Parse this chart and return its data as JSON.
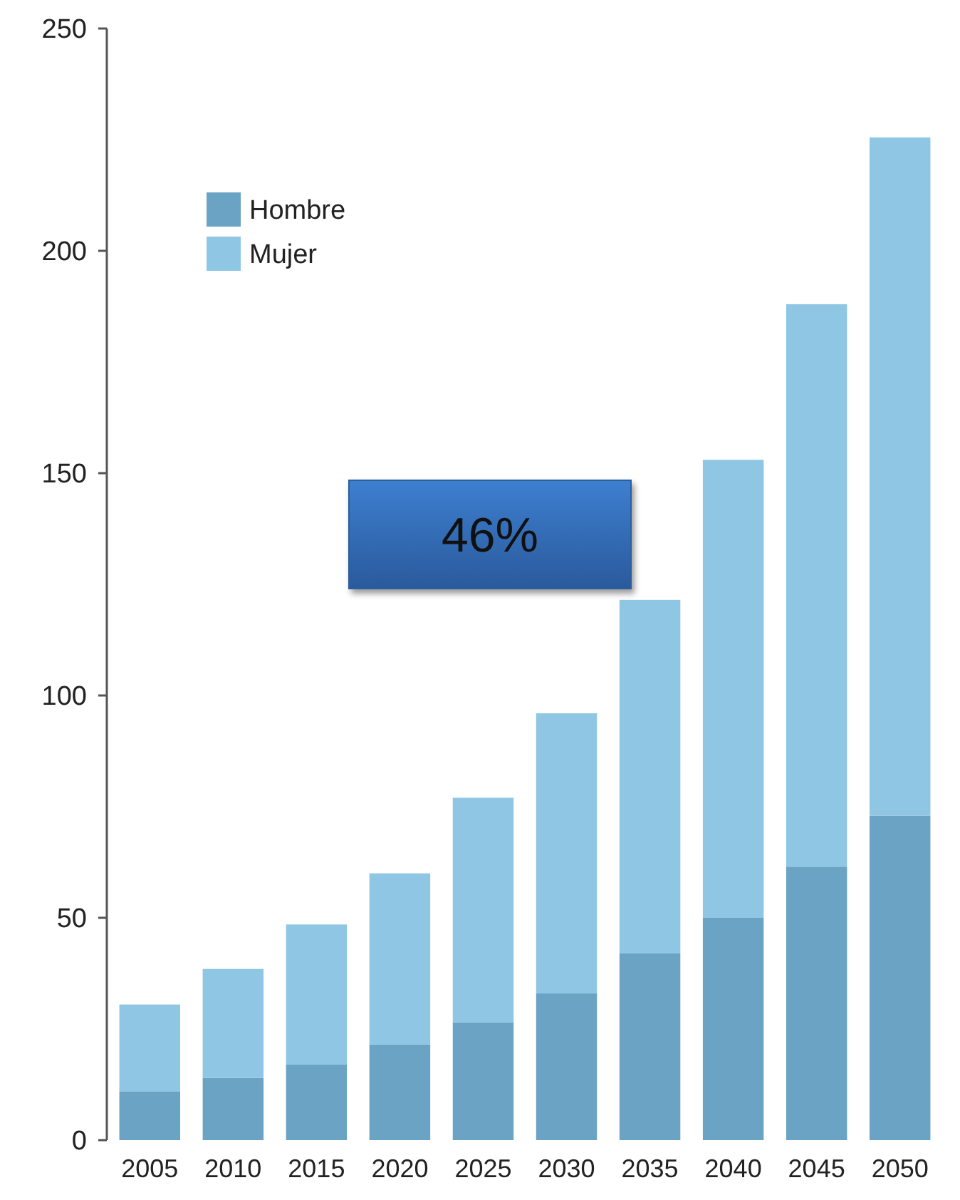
{
  "chart_data": {
    "type": "bar",
    "stacked": true,
    "categories": [
      "2005",
      "2010",
      "2015",
      "2020",
      "2025",
      "2030",
      "2035",
      "2040",
      "2045",
      "2050"
    ],
    "series": [
      {
        "name": "Hombre",
        "color": "#6aa3c4",
        "values": [
          11,
          14,
          17,
          21.5,
          26.5,
          33,
          42,
          50,
          61.5,
          73
        ]
      },
      {
        "name": "Mujer",
        "color": "#8fc6e3",
        "values": [
          19.5,
          24.5,
          31.5,
          38.5,
          50.5,
          63,
          79.5,
          103,
          126.5,
          152.5
        ]
      }
    ],
    "ylim": [
      0,
      250
    ],
    "yticks": [
      0,
      50,
      100,
      150,
      200,
      250
    ],
    "legend": "top left",
    "annotations": [
      "46%"
    ]
  }
}
